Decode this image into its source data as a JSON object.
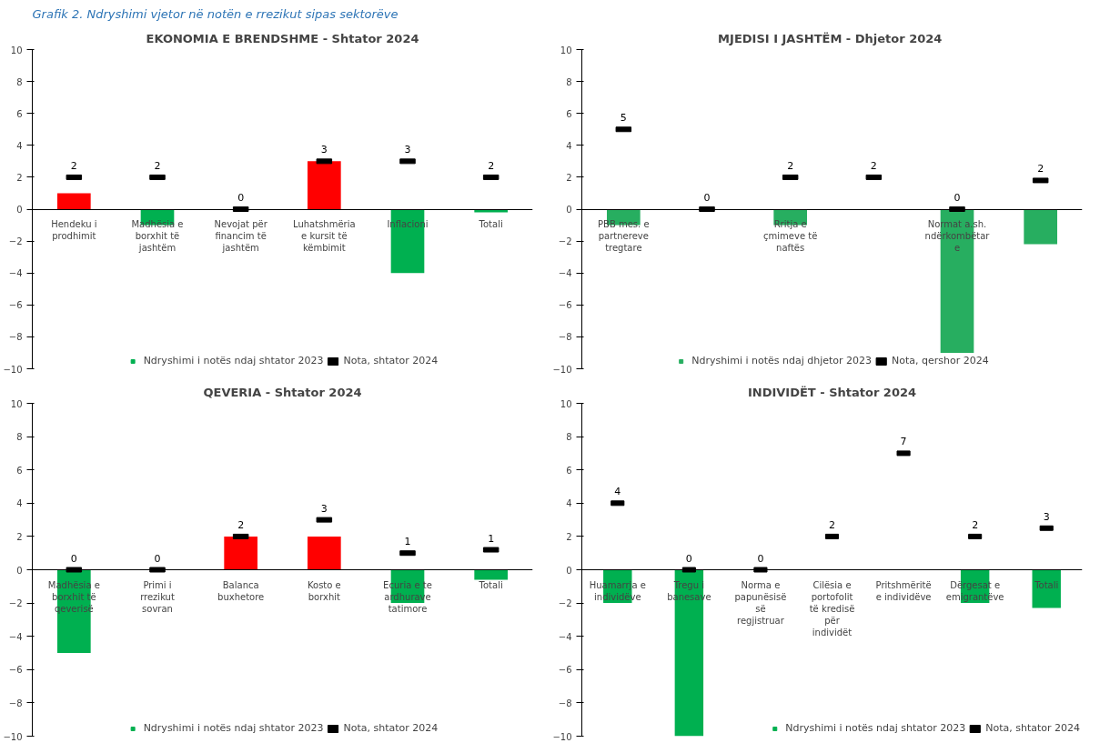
{
  "chart_data": [
    {
      "type": "bar",
      "title": "EKONOMIA E BRENDSHME - Shtator 2024",
      "annotations": [
        "Grafik 2. Ndryshimi vjetor në notën e rrezikut sipas sektorëve"
      ],
      "categories": [
        "Hendeku i prodhimit",
        "Madhësia e borxhit të jashtëm",
        "Nevojat për financim të jashtëm",
        "Luhatshmëria e kursit të këmbimit",
        "Inflacioni",
        "Totali"
      ],
      "series": [
        {
          "name": "Ndryshimi i notës ndaj shtator 2023",
          "color": "#00b050",
          "values": [
            1,
            -1,
            0,
            3,
            -4,
            -0.2
          ],
          "colors": [
            "#ff0000",
            "#00b050",
            "#00b050",
            "#ff0000",
            "#00b050",
            "#00b050"
          ]
        },
        {
          "name": "Nota, shtator 2024",
          "type": "scatter",
          "marker": "square",
          "color": "#000000",
          "values": [
            2,
            2,
            0,
            3,
            3,
            2
          ],
          "value_labels": [
            "2",
            "2",
            "0",
            "3",
            "3",
            "2"
          ]
        }
      ],
      "ylim": [
        -10,
        10
      ],
      "yticks": [
        -10,
        -8,
        -6,
        -4,
        -2,
        0,
        2,
        4,
        6,
        8,
        10
      ],
      "grid": false,
      "legend": "bottom"
    },
    {
      "type": "bar",
      "title": "MJEDISI I JASHTËM  - Dhjetor 2024",
      "categories": [
        "PBB mes. e partnereve tregtare",
        null,
        "Rritja e çmimeve të naftës",
        null,
        "Normat a.sh. ndërkombëtare",
        null
      ],
      "series": [
        {
          "name": "Ndryshimi i notës ndaj dhjetor 2023",
          "color": "#27ae60",
          "values": [
            -1,
            0,
            -1,
            0,
            -9,
            -2.2
          ]
        },
        {
          "name": "Nota, qershor 2024",
          "type": "scatter",
          "marker": "square",
          "color": "#000000",
          "values": [
            5,
            0,
            2,
            2,
            0,
            1.8
          ],
          "value_labels": [
            "5",
            "0",
            "2",
            "2",
            "0",
            "2"
          ]
        }
      ],
      "ylim": [
        -10,
        10
      ],
      "yticks": [
        -10,
        -8,
        -6,
        -4,
        -2,
        0,
        2,
        4,
        6,
        8,
        10
      ],
      "grid": false,
      "legend": "bottom"
    },
    {
      "type": "bar",
      "title": "QEVERIA - Shtator 2024",
      "categories": [
        "Madhësia e borxhit të qeverisë",
        "Primi i rrezikut sovran",
        "Balanca buxhetore",
        "Kosto e borxhit",
        "Ecuria e te ardhurave tatimore",
        "Totali"
      ],
      "series": [
        {
          "name": "Ndryshimi i notës ndaj shtator 2023",
          "color": "#00b050",
          "values": [
            -5,
            0,
            2,
            2,
            -2,
            -0.6
          ],
          "colors": [
            "#00b050",
            "#00b050",
            "#ff0000",
            "#ff0000",
            "#00b050",
            "#00b050"
          ]
        },
        {
          "name": "Nota, shtator 2024",
          "type": "scatter",
          "marker": "square",
          "color": "#000000",
          "values": [
            0,
            0,
            2,
            3,
            1,
            1.2
          ],
          "value_labels": [
            "0",
            "0",
            "2",
            "3",
            "1",
            "1"
          ]
        }
      ],
      "ylim": [
        -10,
        10
      ],
      "yticks": [
        -10,
        -8,
        -6,
        -4,
        -2,
        0,
        2,
        4,
        6,
        8,
        10
      ],
      "grid": false,
      "legend": "bottom"
    },
    {
      "type": "bar",
      "title": "INDIVIDËT - Shtator 2024",
      "categories": [
        "Huamarrja e individëve",
        "Tregu i banesave",
        "Norma e papunësisë së regjistruar",
        "Cilësia e portofolit të kredisë për individët",
        "Pritshmëritë e individëve",
        "Dërgesat e emigrantëve",
        "Totali"
      ],
      "series": [
        {
          "name": "Ndryshimi i notës ndaj shtator 2023",
          "color": "#00b050",
          "values": [
            -2,
            -10,
            0,
            0,
            0,
            -2,
            -2.3
          ]
        },
        {
          "name": "Nota, shtator 2024",
          "type": "scatter",
          "marker": "square",
          "color": "#000000",
          "values": [
            4,
            0,
            0,
            2,
            7,
            2,
            2.5
          ],
          "value_labels": [
            "4",
            "0",
            "0",
            "2",
            "7",
            "2",
            "3"
          ]
        }
      ],
      "ylim": [
        -10,
        10
      ],
      "yticks": [
        -10,
        -8,
        -6,
        -4,
        -2,
        0,
        2,
        4,
        6,
        8,
        10
      ],
      "grid": false,
      "legend": "bottom right"
    }
  ]
}
